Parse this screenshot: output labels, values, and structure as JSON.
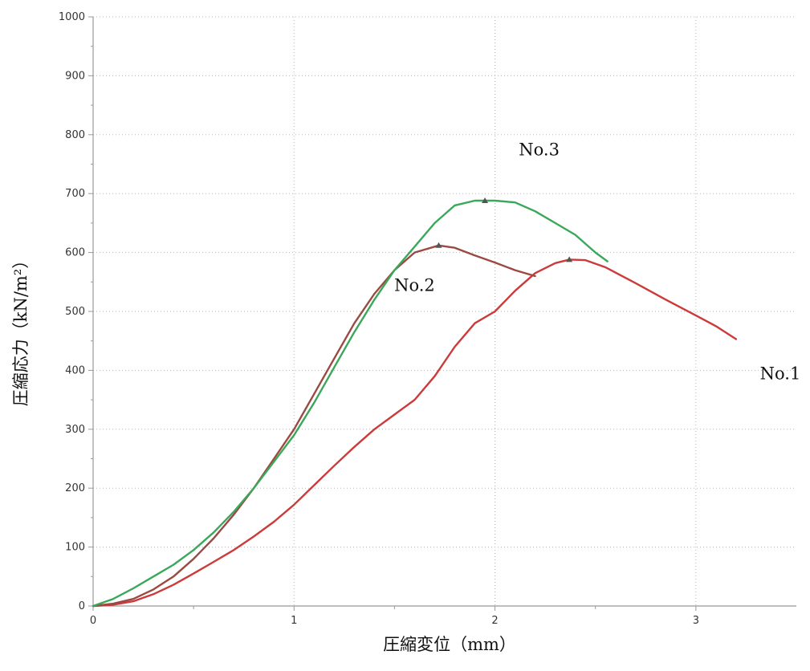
{
  "chart_data": {
    "type": "line",
    "xlabel": "圧縮変位（mm）",
    "ylabel": "圧縮応力（kN/m²）",
    "xlim": [
      0,
      3.5
    ],
    "ylim": [
      0,
      1000
    ],
    "grid": true,
    "x_ticks": [
      0,
      1,
      2,
      3
    ],
    "x_tick_labels": [
      "0",
      "1",
      "2",
      "3"
    ],
    "y_ticks": [
      0,
      100,
      200,
      300,
      400,
      500,
      600,
      700,
      800,
      900,
      1000
    ],
    "y_tick_labels": [
      "0",
      "100",
      "200",
      "300",
      "400",
      "500",
      "600",
      "700",
      "800",
      "900",
      "1000"
    ],
    "series": [
      {
        "name": "No.1",
        "color": "#cc3a3a",
        "peak": [
          2.37,
          588
        ],
        "label_anchor": [
          3.42,
          385
        ],
        "points": [
          [
            0,
            0
          ],
          [
            0.1,
            2
          ],
          [
            0.2,
            8
          ],
          [
            0.3,
            20
          ],
          [
            0.4,
            36
          ],
          [
            0.5,
            55
          ],
          [
            0.6,
            75
          ],
          [
            0.7,
            95
          ],
          [
            0.8,
            118
          ],
          [
            0.9,
            143
          ],
          [
            1.0,
            172
          ],
          [
            1.1,
            205
          ],
          [
            1.2,
            238
          ],
          [
            1.3,
            270
          ],
          [
            1.4,
            300
          ],
          [
            1.5,
            325
          ],
          [
            1.6,
            350
          ],
          [
            1.7,
            390
          ],
          [
            1.8,
            440
          ],
          [
            1.9,
            480
          ],
          [
            2.0,
            500
          ],
          [
            2.1,
            535
          ],
          [
            2.2,
            565
          ],
          [
            2.3,
            582
          ],
          [
            2.37,
            588
          ],
          [
            2.45,
            587
          ],
          [
            2.55,
            575
          ],
          [
            2.7,
            548
          ],
          [
            2.85,
            520
          ],
          [
            3.0,
            493
          ],
          [
            3.1,
            475
          ],
          [
            3.2,
            453
          ]
        ]
      },
      {
        "name": "No.2",
        "color": "#9a4a42",
        "peak": [
          1.72,
          612
        ],
        "label_anchor": [
          1.6,
          535
        ],
        "points": [
          [
            0,
            0
          ],
          [
            0.1,
            4
          ],
          [
            0.2,
            12
          ],
          [
            0.3,
            28
          ],
          [
            0.4,
            50
          ],
          [
            0.5,
            80
          ],
          [
            0.6,
            115
          ],
          [
            0.7,
            155
          ],
          [
            0.8,
            200
          ],
          [
            0.9,
            250
          ],
          [
            1.0,
            300
          ],
          [
            1.1,
            360
          ],
          [
            1.2,
            420
          ],
          [
            1.3,
            480
          ],
          [
            1.4,
            530
          ],
          [
            1.5,
            570
          ],
          [
            1.6,
            600
          ],
          [
            1.72,
            612
          ],
          [
            1.8,
            608
          ],
          [
            1.9,
            595
          ],
          [
            2.0,
            583
          ],
          [
            2.1,
            570
          ],
          [
            2.2,
            560
          ]
        ]
      },
      {
        "name": "No.3",
        "color": "#3aa85a",
        "peak": [
          1.95,
          688
        ],
        "label_anchor": [
          2.22,
          765
        ],
        "points": [
          [
            0,
            0
          ],
          [
            0.1,
            12
          ],
          [
            0.2,
            30
          ],
          [
            0.3,
            50
          ],
          [
            0.4,
            70
          ],
          [
            0.5,
            95
          ],
          [
            0.6,
            125
          ],
          [
            0.7,
            160
          ],
          [
            0.8,
            200
          ],
          [
            0.9,
            245
          ],
          [
            1.0,
            290
          ],
          [
            1.1,
            345
          ],
          [
            1.2,
            405
          ],
          [
            1.3,
            465
          ],
          [
            1.4,
            520
          ],
          [
            1.5,
            570
          ],
          [
            1.6,
            610
          ],
          [
            1.7,
            650
          ],
          [
            1.8,
            680
          ],
          [
            1.9,
            688
          ],
          [
            2.0,
            688
          ],
          [
            2.1,
            685
          ],
          [
            2.2,
            670
          ],
          [
            2.3,
            650
          ],
          [
            2.4,
            630
          ],
          [
            2.5,
            600
          ],
          [
            2.56,
            585
          ]
        ]
      }
    ]
  }
}
